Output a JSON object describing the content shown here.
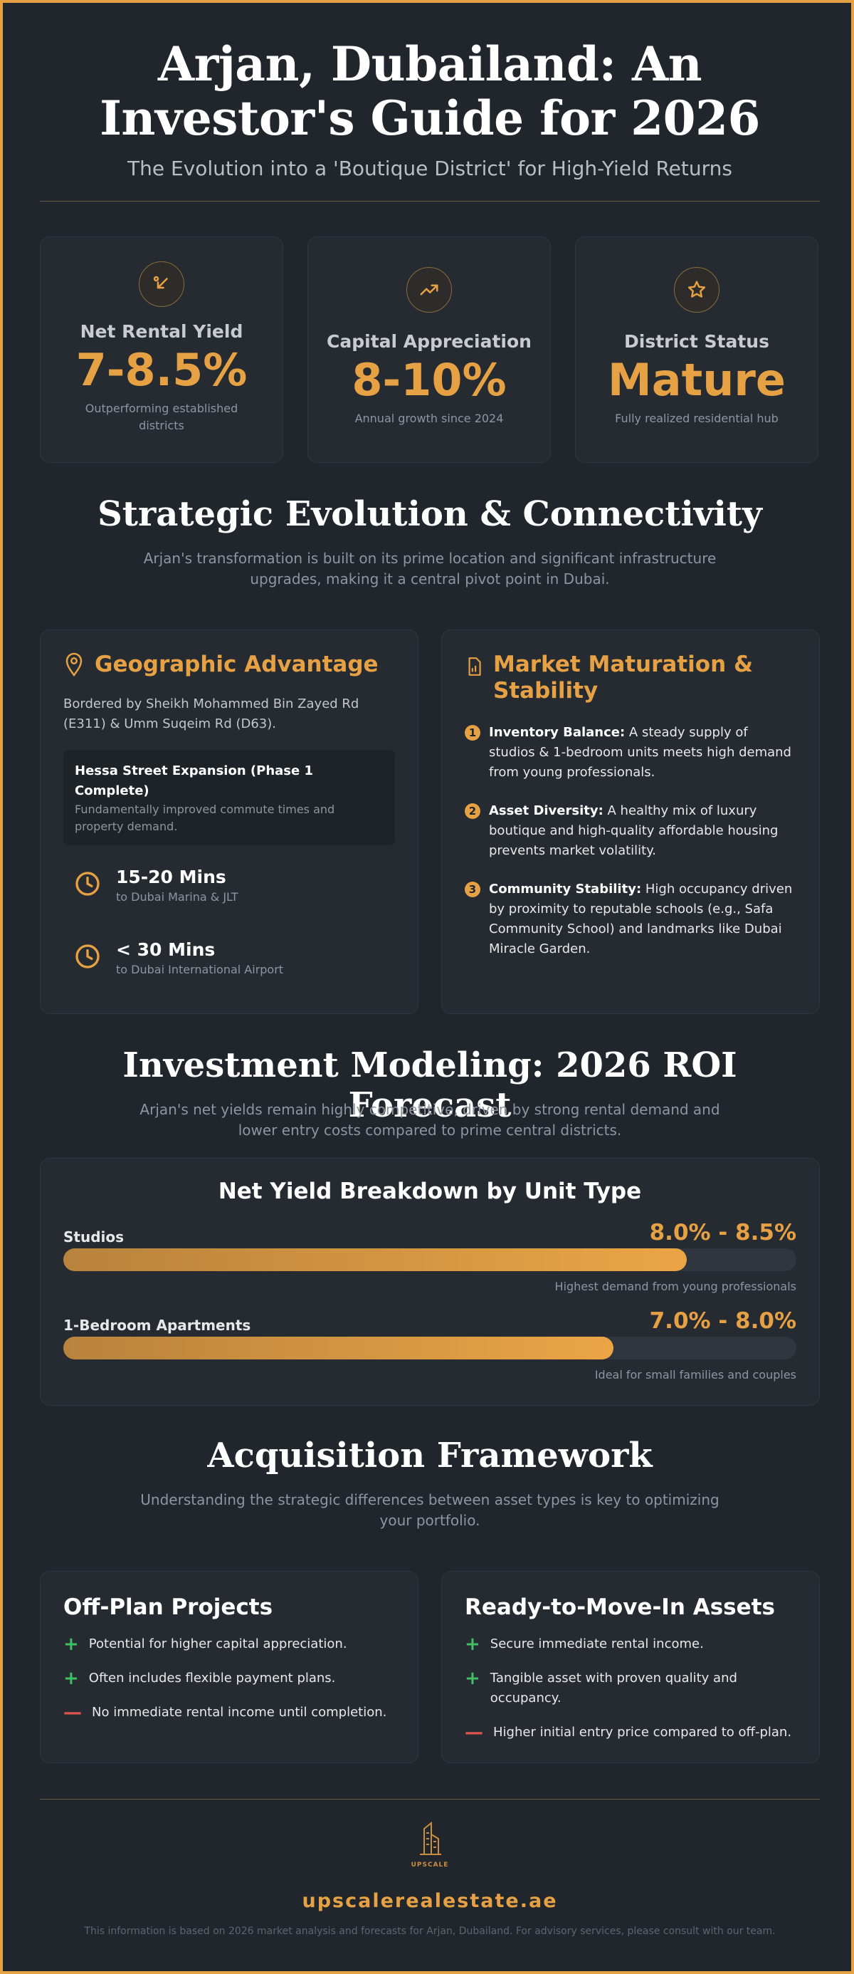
{
  "hero": {
    "title_line1": "Arjan, Dubailand: An",
    "title_line2": "Investor's Guide for 2026",
    "subtitle": "The Evolution into a 'Boutique District' for High-Yield Returns"
  },
  "stats": [
    {
      "icon": "arrow-down-left-icon",
      "label": "Net Rental Yield",
      "value": "7-8.5%",
      "caption": "Outperforming established districts"
    },
    {
      "icon": "trend-up-icon",
      "label": "Capital Appreciation",
      "value": "8-10%",
      "caption": "Annual growth since 2024"
    },
    {
      "icon": "star-icon",
      "label": "District Status",
      "value": "Mature",
      "caption": "Fully realized residential hub"
    }
  ],
  "evolution": {
    "title": "Strategic Evolution & Connectivity",
    "description": "Arjan's transformation is built on its prime location and significant infrastructure upgrades, making it a central pivot point in Dubai."
  },
  "geographic": {
    "title": "Geographic Advantage",
    "text": "Bordered by Sheikh Mohammed Bin Zayed Rd (E311) & Umm Suqeim Rd (D63).",
    "highlight_title": "Hessa Street Expansion (Phase 1 Complete)",
    "highlight_text": "Fundamentally improved commute times and property demand.",
    "commutes": [
      {
        "time": "15-20 Mins",
        "dest": "to Dubai Marina & JLT"
      },
      {
        "time": "< 30 Mins",
        "dest": "to Dubai International Airport"
      }
    ]
  },
  "market": {
    "title": "Market Maturation & Stability",
    "items": [
      {
        "num": "1",
        "head": "Inventory Balance:",
        "text": " A steady supply of studios & 1-bedroom units meets high demand from young professionals."
      },
      {
        "num": "2",
        "head": "Asset Diversity:",
        "text": " A healthy mix of luxury boutique and high-quality affordable housing prevents market volatility."
      },
      {
        "num": "3",
        "head": "Community Stability:",
        "text": " High occupancy driven by proximity to reputable schools (e.g., Safa Community School) and landmarks like Dubai Miracle Garden."
      }
    ]
  },
  "modeling": {
    "title": "Investment Modeling: 2026 ROI Forecast",
    "description": "Arjan's net yields remain highly competitive, driven by strong rental demand and lower entry costs compared to prime central districts."
  },
  "chart_data": {
    "type": "bar",
    "title": "Net Yield Breakdown by Unit Type",
    "categories": [
      "Studios",
      "1-Bedroom Apartments"
    ],
    "value_labels": [
      "8.0% - 8.5%",
      "7.0% - 8.0%"
    ],
    "ranges": [
      [
        8.0,
        8.5
      ],
      [
        7.0,
        8.0
      ]
    ],
    "fill_fraction": [
      0.85,
      0.75
    ],
    "notes": [
      "Highest demand from young professionals",
      "Ideal for small families and couples"
    ]
  },
  "acquisition": {
    "title": "Acquisition Framework",
    "description": "Understanding the strategic differences between asset types is key to optimizing your portfolio.",
    "offplan": {
      "title": "Off-Plan Projects",
      "items": [
        {
          "type": "plus",
          "text": "Potential for higher capital appreciation."
        },
        {
          "type": "plus",
          "text": "Often includes flexible payment plans."
        },
        {
          "type": "minus",
          "text": "No immediate rental income until completion."
        }
      ]
    },
    "ready": {
      "title": "Ready-to-Move-In Assets",
      "items": [
        {
          "type": "plus",
          "text": "Secure immediate rental income."
        },
        {
          "type": "plus",
          "text": "Tangible asset with proven quality and occupancy."
        },
        {
          "type": "minus",
          "text": "Higher initial entry price compared to off-plan."
        }
      ]
    }
  },
  "footer": {
    "logo_text": "UPSCALE",
    "site": "upscalerealestate.ae",
    "disclaimer": "This information is based on 2026 market analysis and forecasts for Arjan, Dubailand. For advisory services, please consult with our team."
  },
  "colors": {
    "accent": "#e5a143",
    "background": "#20262c",
    "card": "#262b32",
    "plus": "#3fbf63",
    "minus": "#e0524d"
  }
}
